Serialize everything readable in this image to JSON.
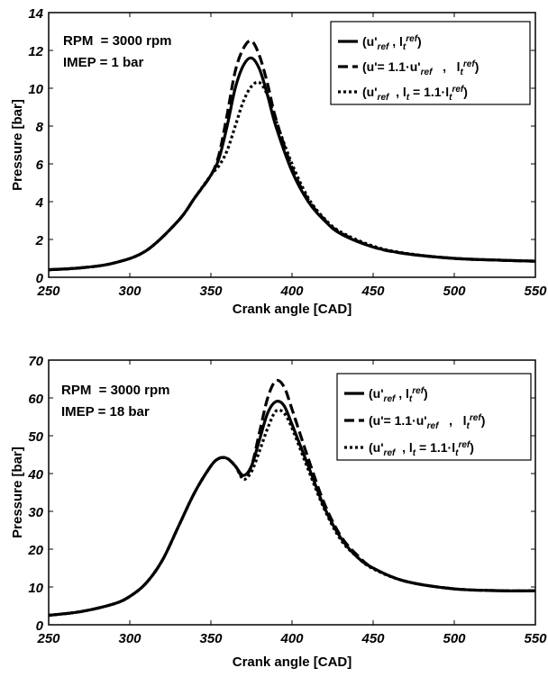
{
  "chart_data": [
    {
      "type": "line",
      "xlabel": "Crank angle [CAD]",
      "ylabel": "Pressure [bar]",
      "xlim": [
        250,
        550
      ],
      "ylim": [
        0,
        14
      ],
      "xticks": [
        "250",
        "300",
        "350",
        "400",
        "450",
        "500",
        "550"
      ],
      "yticks": [
        "0",
        "2",
        "4",
        "6",
        "8",
        "10",
        "12",
        "14"
      ],
      "annotations": [
        "RPM  = 3000 rpm",
        "IMEP = 1 bar"
      ],
      "legend_position": "top-right",
      "legend": [
        {
          "style": "solid",
          "text": [
            "(u'",
            "ref",
            " , l",
            "t",
            "ref",
            ")"
          ]
        },
        {
          "style": "dashed",
          "text": [
            "(u'= 1.1·u'",
            "ref",
            "   ,   l",
            "t",
            "ref",
            ")"
          ]
        },
        {
          "style": "dotted",
          "text": [
            "(u'",
            "ref",
            "  , l",
            "t",
            " = 1.1·l",
            "t",
            "ref",
            ")"
          ]
        }
      ],
      "series": [
        {
          "style": "solid",
          "x": [
            250,
            270,
            290,
            310,
            330,
            340,
            350,
            355,
            360,
            365,
            370,
            375,
            380,
            385,
            390,
            400,
            410,
            420,
            430,
            450,
            470,
            500,
            530,
            550
          ],
          "y": [
            0.4,
            0.5,
            0.75,
            1.4,
            3.0,
            4.2,
            5.4,
            6.3,
            8.0,
            10.0,
            11.2,
            11.6,
            11.0,
            9.6,
            8.0,
            5.6,
            4.0,
            3.0,
            2.3,
            1.6,
            1.25,
            1.0,
            0.9,
            0.85
          ]
        },
        {
          "style": "dashed",
          "x": [
            250,
            270,
            290,
            310,
            330,
            340,
            350,
            355,
            360,
            365,
            370,
            375,
            380,
            385,
            390,
            400,
            410,
            420,
            430,
            450,
            470,
            500,
            530,
            550
          ],
          "y": [
            0.4,
            0.5,
            0.75,
            1.4,
            3.0,
            4.2,
            5.4,
            6.5,
            8.6,
            10.9,
            12.1,
            12.5,
            11.7,
            10.2,
            8.4,
            5.8,
            4.1,
            3.05,
            2.35,
            1.6,
            1.25,
            1.0,
            0.9,
            0.85
          ]
        },
        {
          "style": "dotted",
          "x": [
            250,
            270,
            290,
            310,
            330,
            340,
            350,
            355,
            360,
            365,
            370,
            375,
            380,
            385,
            390,
            400,
            410,
            420,
            430,
            450,
            470,
            500,
            530,
            550
          ],
          "y": [
            0.4,
            0.5,
            0.75,
            1.4,
            3.0,
            4.2,
            5.4,
            5.9,
            6.7,
            8.0,
            9.3,
            10.1,
            10.3,
            9.6,
            8.3,
            6.0,
            4.2,
            3.1,
            2.4,
            1.65,
            1.27,
            1.0,
            0.9,
            0.85
          ]
        }
      ]
    },
    {
      "type": "line",
      "xlabel": "Crank angle [CAD]",
      "ylabel": "Pressure [bar]",
      "xlim": [
        250,
        550
      ],
      "ylim": [
        0,
        70
      ],
      "xticks": [
        "250",
        "300",
        "350",
        "400",
        "450",
        "500",
        "550"
      ],
      "yticks": [
        "0",
        "10",
        "20",
        "30",
        "40",
        "50",
        "60",
        "70"
      ],
      "annotations": [
        "RPM  = 3000 rpm",
        "IMEP = 18 bar"
      ],
      "legend_position": "top-right",
      "legend": [
        {
          "style": "solid",
          "text": [
            "(u'",
            "ref",
            " , l",
            "t",
            "ref",
            ")"
          ]
        },
        {
          "style": "dashed",
          "text": [
            "(u'= 1.1·u'",
            "ref",
            "   ,   l",
            "t",
            "ref",
            ")"
          ]
        },
        {
          "style": "dotted",
          "text": [
            "(u'",
            "ref",
            "  , l",
            "t",
            " = 1.1·l",
            "t",
            "ref",
            ")"
          ]
        }
      ],
      "series": [
        {
          "style": "solid",
          "x": [
            250,
            270,
            290,
            300,
            310,
            320,
            330,
            340,
            350,
            355,
            360,
            365,
            370,
            375,
            380,
            385,
            390,
            395,
            400,
            410,
            420,
            430,
            440,
            450,
            470,
            500,
            530,
            550
          ],
          "y": [
            2.5,
            3.5,
            5.5,
            7.5,
            11,
            17,
            26,
            35,
            42,
            44,
            44,
            42,
            39.5,
            42,
            49,
            56,
            59,
            58,
            53,
            42,
            31,
            23,
            18,
            15,
            11.5,
            9.5,
            9,
            9
          ]
        },
        {
          "style": "dashed",
          "x": [
            250,
            270,
            290,
            300,
            310,
            320,
            330,
            340,
            350,
            355,
            360,
            365,
            370,
            375,
            380,
            385,
            390,
            395,
            400,
            410,
            420,
            430,
            440,
            450,
            470,
            500,
            530,
            550
          ],
          "y": [
            2.5,
            3.5,
            5.5,
            7.5,
            11,
            17,
            26,
            35,
            42,
            44,
            44,
            42,
            39,
            42,
            51,
            60,
            64.5,
            63,
            57,
            44,
            32,
            23.5,
            18.5,
            15,
            11.5,
            9.5,
            9,
            9
          ]
        },
        {
          "style": "dotted",
          "x": [
            250,
            270,
            290,
            300,
            310,
            320,
            330,
            340,
            350,
            355,
            360,
            365,
            370,
            375,
            380,
            385,
            390,
            395,
            400,
            410,
            420,
            430,
            440,
            450,
            470,
            500,
            530,
            550
          ],
          "y": [
            2.5,
            3.5,
            5.5,
            7.5,
            11,
            17,
            26,
            35,
            42,
            44,
            44,
            42,
            38.5,
            40.5,
            46,
            52,
            56.5,
            56,
            52,
            41,
            30.5,
            22.5,
            18,
            14.8,
            11.5,
            9.5,
            9,
            9
          ]
        }
      ]
    }
  ]
}
